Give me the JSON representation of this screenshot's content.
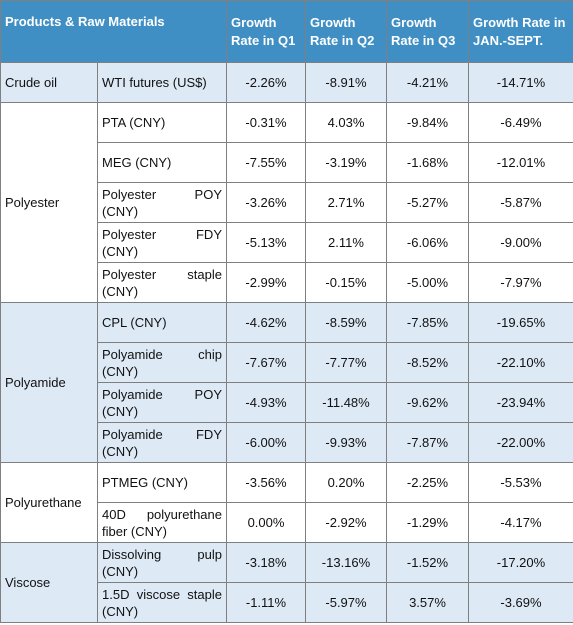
{
  "header": {
    "col1": "Products & Raw Materials",
    "col3": "Growth Rate in Q1",
    "col4": "Growth Rate in Q2",
    "col5": "Growth Rate in Q3",
    "col6": "Growth Rate in JAN.-SEPT."
  },
  "groups": [
    {
      "name": "Crude oil",
      "shaded": true,
      "rows": [
        {
          "item": "WTI futures (US$)",
          "q1": "-2.26%",
          "q2": "-8.91%",
          "q3": "-4.21%",
          "ytd": "-14.71%"
        }
      ]
    },
    {
      "name": "Polyester",
      "shaded": false,
      "rows": [
        {
          "item": "PTA (CNY)",
          "q1": "-0.31%",
          "q2": "4.03%",
          "q3": "-9.84%",
          "ytd": "-6.49%"
        },
        {
          "item": "MEG (CNY)",
          "q1": "-7.55%",
          "q2": "-3.19%",
          "q3": "-1.68%",
          "ytd": "-12.01%"
        },
        {
          "item": "Polyester POY (CNY)",
          "q1": "-3.26%",
          "q2": "2.71%",
          "q3": "-5.27%",
          "ytd": "-5.87%"
        },
        {
          "item": "Polyester FDY (CNY)",
          "q1": "-5.13%",
          "q2": "2.11%",
          "q3": "-6.06%",
          "ytd": "-9.00%"
        },
        {
          "item": "Polyester staple (CNY)",
          "q1": "-2.99%",
          "q2": "-0.15%",
          "q3": "-5.00%",
          "ytd": "-7.97%"
        }
      ]
    },
    {
      "name": "Polyamide",
      "shaded": true,
      "rows": [
        {
          "item": "CPL (CNY)",
          "q1": "-4.62%",
          "q2": "-8.59%",
          "q3": "-7.85%",
          "ytd": "-19.65%"
        },
        {
          "item": "Polyamide chip (CNY)",
          "q1": "-7.67%",
          "q2": "-7.77%",
          "q3": "-8.52%",
          "ytd": "-22.10%"
        },
        {
          "item": "Polyamide POY (CNY)",
          "q1": "-4.93%",
          "q2": "-11.48%",
          "q3": "-9.62%",
          "ytd": "-23.94%"
        },
        {
          "item": "Polyamide FDY (CNY)",
          "q1": "-6.00%",
          "q2": "-9.93%",
          "q3": "-7.87%",
          "ytd": "-22.00%"
        }
      ]
    },
    {
      "name": "Polyurethane",
      "shaded": false,
      "rows": [
        {
          "item": "PTMEG (CNY)",
          "q1": "-3.56%",
          "q2": "0.20%",
          "q3": "-2.25%",
          "ytd": "-5.53%"
        },
        {
          "item": "40D polyurethane fiber (CNY)",
          "q1": "0.00%",
          "q2": "-2.92%",
          "q3": "-1.29%",
          "ytd": "-4.17%"
        }
      ]
    },
    {
      "name": "Viscose",
      "shaded": true,
      "rows": [
        {
          "item": "Dissolving pulp (CNY)",
          "q1": "-3.18%",
          "q2": "-13.16%",
          "q3": "-1.52%",
          "ytd": "-17.20%"
        },
        {
          "item": "1.5D viscose staple (CNY)",
          "q1": "-1.11%",
          "q2": "-5.97%",
          "q3": "3.57%",
          "ytd": "-3.69%"
        }
      ]
    }
  ],
  "colors": {
    "header_bg": "#3f8fc4",
    "shade_bg": "#dde9f5",
    "border": "#7f7f7f"
  }
}
